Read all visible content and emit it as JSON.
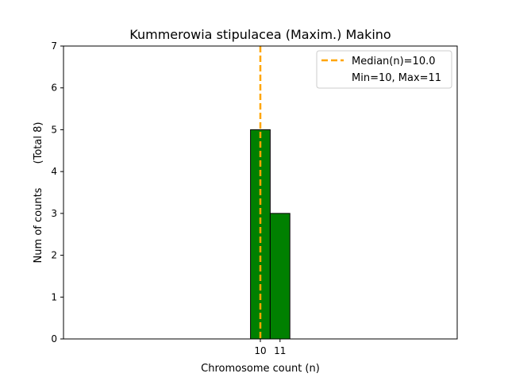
{
  "chart_data": {
    "type": "bar",
    "title": "Kummerowia stipulacea (Maxim.) Makino",
    "xlabel": "Chromosome count (n)",
    "ylabel": "Num of counts",
    "ylabel_secondary": "(Total 8)",
    "x_ticks": [
      10,
      11
    ],
    "y_ticks": [
      0,
      1,
      2,
      3,
      4,
      5,
      6,
      7
    ],
    "ylim": [
      0,
      7
    ],
    "xlim": [
      0,
      20
    ],
    "grid": false,
    "bars": [
      {
        "x": 10,
        "value": 5
      },
      {
        "x": 11,
        "value": 3
      }
    ],
    "bar_width": 1,
    "bar_color": "#008000",
    "baseline_extent": [
      0,
      14.5
    ],
    "median_line": {
      "x": 10.0,
      "color": "#FFA500"
    },
    "legend": {
      "position": "top-right",
      "entries": [
        "Median(n)=10.0",
        "Min=10, Max=11"
      ]
    }
  }
}
